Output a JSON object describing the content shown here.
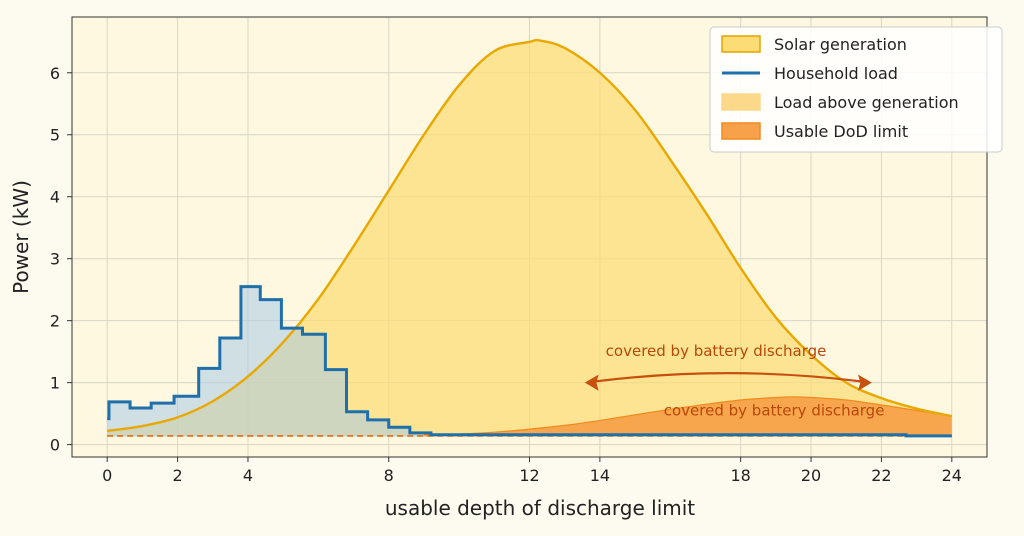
{
  "chart_data": {
    "type": "area",
    "xlabel": "usable depth of discharge limit",
    "ylabel": "Power (kW)",
    "xlim": [
      -1,
      25
    ],
    "ylim": [
      -0.2,
      6.9
    ],
    "xticks": [
      0,
      2,
      4,
      8,
      12,
      14,
      18,
      20,
      22,
      24
    ],
    "yticks": [
      0,
      1,
      2,
      3,
      4,
      5,
      6
    ],
    "grid": true,
    "legend": {
      "placement": "top-right",
      "entries": [
        {
          "label": "Solar generation",
          "kind": "patch",
          "fill": "#fbdc75",
          "edge": "#e6a400"
        },
        {
          "label": "Household load",
          "kind": "line",
          "color": "#1f6fab"
        },
        {
          "label": "Load above generation",
          "kind": "patch",
          "fill": "#fcd98a",
          "edge": "#fcd98a"
        },
        {
          "label": "Usable DoD limit",
          "kind": "patch",
          "fill": "#f7a24a",
          "edge": "#f08a20"
        }
      ]
    },
    "series": [
      {
        "name": "Solar generation",
        "kind": "smooth-area",
        "color": "#e8a800",
        "fill": "#fbdc75",
        "x": [
          0,
          1,
          2,
          3,
          4,
          5,
          6,
          7,
          8,
          9,
          10,
          11,
          12,
          12.3,
          13,
          14,
          15,
          16,
          17,
          18,
          19,
          20,
          21,
          22,
          23,
          24
        ],
        "y": [
          0.22,
          0.3,
          0.44,
          0.7,
          1.1,
          1.65,
          2.35,
          3.2,
          4.1,
          5.0,
          5.8,
          6.35,
          6.5,
          6.52,
          6.4,
          6.0,
          5.4,
          4.6,
          3.75,
          2.85,
          2.05,
          1.45,
          1.0,
          0.75,
          0.58,
          0.46
        ]
      },
      {
        "name": "Household load",
        "kind": "step",
        "color": "#1f6fab",
        "fill": "#a9cbe6",
        "x": [
          0,
          0.05,
          0.65,
          1.25,
          1.9,
          2.6,
          3.2,
          3.8,
          4.35,
          4.95,
          5.55,
          6.2,
          6.8,
          7.4,
          8.0,
          8.6,
          9.2,
          22.7,
          24
        ],
        "y": [
          0.42,
          0.69,
          0.59,
          0.67,
          0.78,
          1.23,
          1.72,
          2.55,
          2.34,
          1.88,
          1.78,
          1.21,
          0.53,
          0.4,
          0.28,
          0.19,
          0.16,
          0.14,
          0.14
        ]
      },
      {
        "name": "Usable DoD limit",
        "kind": "hump-area",
        "color": "#f08a20",
        "fill": "#f7a24a",
        "x": [
          9,
          10,
          11,
          12,
          13,
          14,
          15,
          16,
          17,
          18,
          19,
          19.5,
          20,
          21,
          22,
          23,
          24
        ],
        "y": [
          0.16,
          0.17,
          0.2,
          0.25,
          0.31,
          0.39,
          0.48,
          0.57,
          0.65,
          0.72,
          0.76,
          0.77,
          0.76,
          0.72,
          0.64,
          0.55,
          0.46
        ]
      }
    ],
    "dod_baseline": {
      "y": 0.14,
      "color": "#e06a10",
      "style": "dashed"
    },
    "annotations": [
      {
        "text": "covered by battery discharge",
        "x": 17.3,
        "y": 1.43,
        "color": "#b8480a"
      },
      {
        "text": "covered by battery discharge",
        "x": 18.95,
        "y": 0.47,
        "color": "#b8480a"
      }
    ],
    "arrow": {
      "x1": 13.6,
      "x2": 21.7,
      "y": 1.0,
      "color": "#c8500f"
    }
  }
}
